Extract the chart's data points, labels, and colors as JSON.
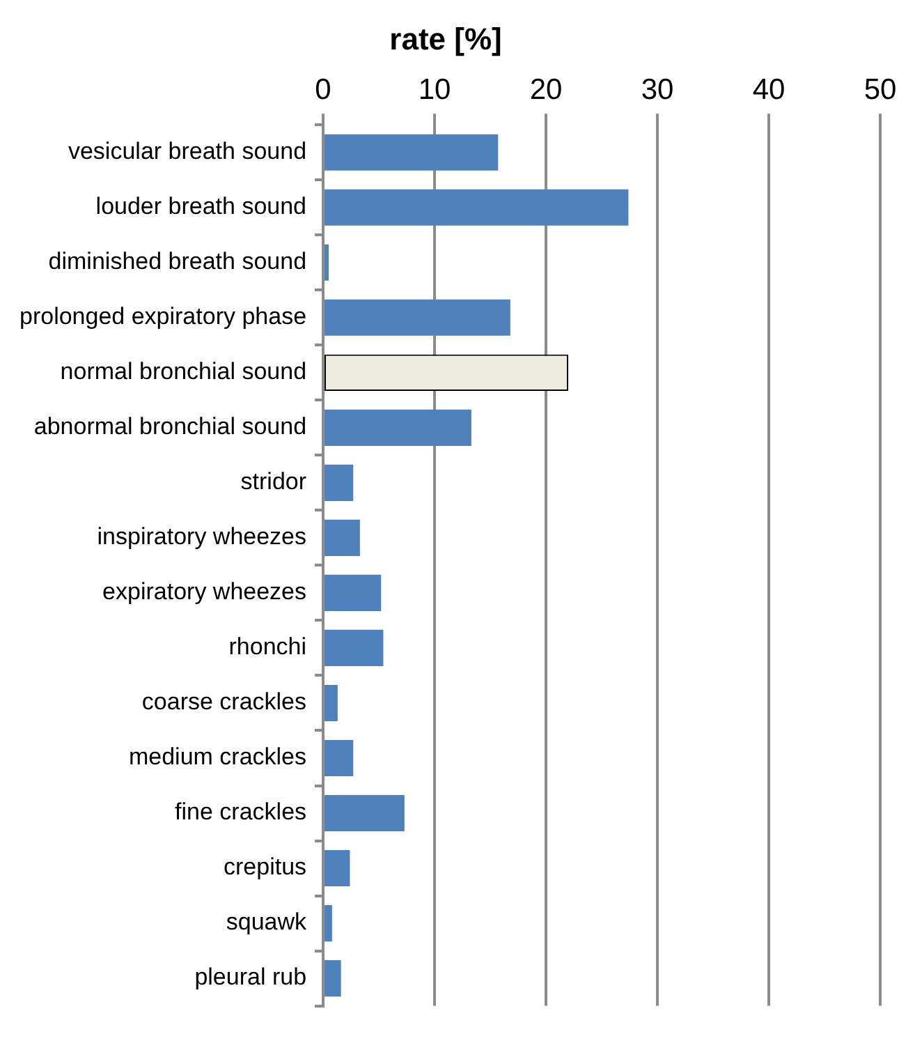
{
  "chart_data": {
    "type": "bar",
    "orientation": "horizontal",
    "title": "rate [%]",
    "categories": [
      "vesicular breath sound",
      "louder breath sound",
      "diminished breath sound",
      "prolonged expiratory phase",
      "normal bronchial sound",
      "abnormal bronchial sound",
      "stridor",
      "inspiratory wheezes",
      "expiratory wheezes",
      "rhonchi",
      "coarse crackles",
      "medium crackles",
      "fine crackles",
      "crepitus",
      "squawk",
      "pleural rub"
    ],
    "values": [
      15.7,
      27.4,
      0.5,
      16.8,
      22.0,
      13.3,
      2.7,
      3.3,
      5.2,
      5.4,
      1.3,
      2.7,
      7.3,
      2.4,
      0.8,
      1.6
    ],
    "colors": [
      "#4f81bd",
      "#4f81bd",
      "#4f81bd",
      "#4f81bd",
      "#eeece1",
      "#4f81bd",
      "#4f81bd",
      "#4f81bd",
      "#4f81bd",
      "#4f81bd",
      "#4f81bd",
      "#4f81bd",
      "#4f81bd",
      "#4f81bd",
      "#4f81bd",
      "#4f81bd"
    ],
    "xlim": [
      0,
      50
    ],
    "xticks": [
      0,
      10,
      20,
      30,
      40,
      50
    ],
    "grid": "x",
    "legend": false
  }
}
